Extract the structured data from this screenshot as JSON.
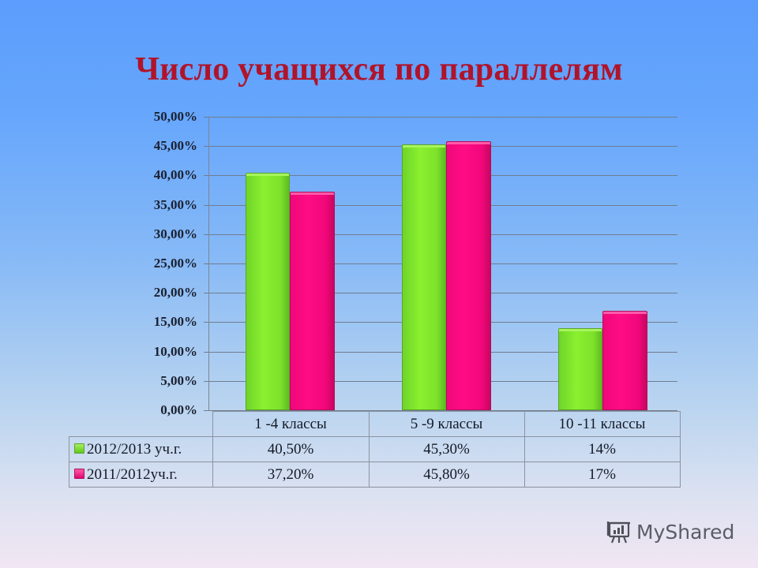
{
  "title": "Число учащихся по параллелям",
  "y_axis": {
    "ticks": [
      "50,00%",
      "45,00%",
      "40,00%",
      "35,00%",
      "30,00%",
      "25,00%",
      "20,00%",
      "15,00%",
      "10,00%",
      "5,00%",
      "0,00%"
    ]
  },
  "table": {
    "headers": [
      "1 -4 классы",
      "5 -9 классы",
      "10 -11 классы"
    ],
    "rows": [
      {
        "legend": "2012/2013 уч.г.",
        "values": [
          "40,50%",
          "45,30%",
          "14%"
        ]
      },
      {
        "legend": "2011/2012уч.г.",
        "values": [
          "37,20%",
          "45,80%",
          "17%"
        ]
      }
    ]
  },
  "colors": {
    "series_2012_2013": "#7ee22b",
    "series_2011_2012": "#ff0c84",
    "title": "#b0142a"
  },
  "watermark": {
    "text": "MyShared",
    "icon": "presentation-board-icon"
  },
  "chart_data": {
    "type": "bar",
    "title": "Число учащихся по параллелям",
    "categories": [
      "1 -4 классы",
      "5 -9 классы",
      "10 -11 классы"
    ],
    "series": [
      {
        "name": "2012/2013 уч.г.",
        "values": [
          40.5,
          45.3,
          14
        ],
        "color": "#7ee22b"
      },
      {
        "name": "2011/2012уч.г.",
        "values": [
          37.2,
          45.8,
          17
        ],
        "color": "#ff0c84"
      }
    ],
    "xlabel": "",
    "ylabel": "",
    "ylim": [
      0,
      50
    ],
    "y_tick_step": 5,
    "y_tick_format": "percent, 2 decimals, comma separator",
    "grid": true,
    "legend": "data table below chart (left column)"
  }
}
